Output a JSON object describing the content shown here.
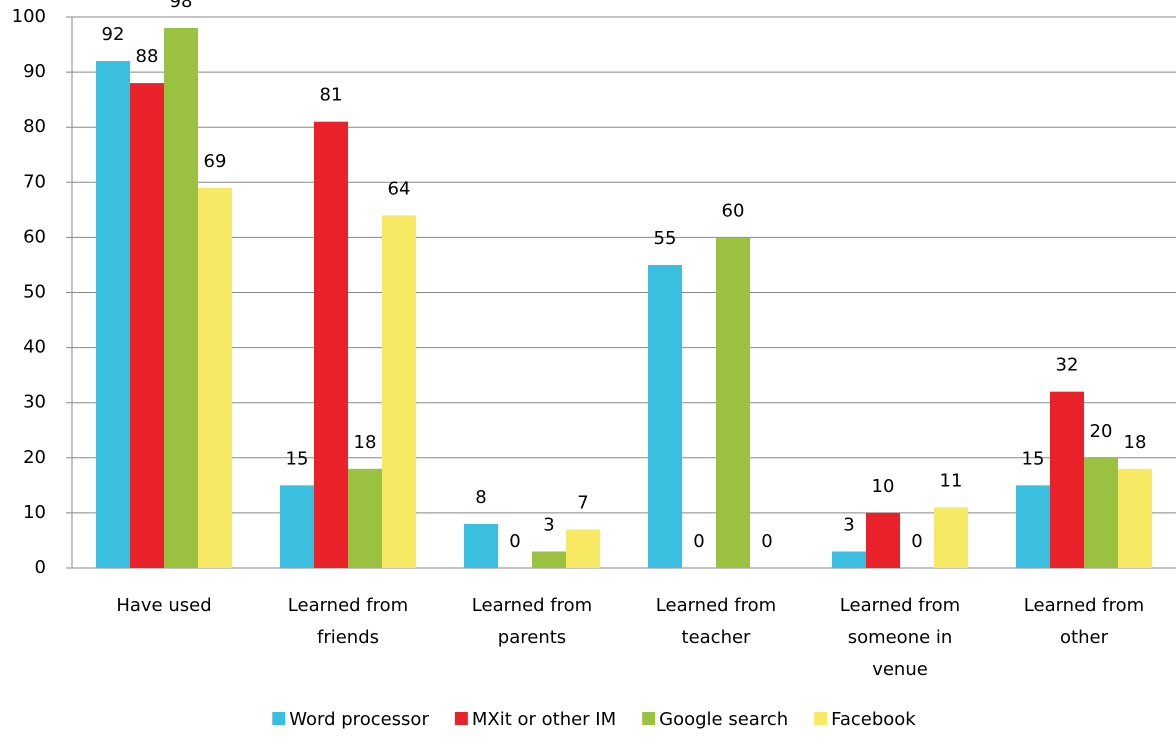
{
  "chart_data": {
    "type": "bar",
    "categories": [
      "Have used",
      "Learned from friends",
      "Learned from parents",
      "Learned from teacher",
      "Learned from someone in venue",
      "Learned from other"
    ],
    "series": [
      {
        "name": "Word processor",
        "color": "#3bbfe0",
        "values": [
          92,
          15,
          8,
          55,
          3,
          15
        ]
      },
      {
        "name": "MXit or other IM",
        "color": "#e8212b",
        "values": [
          88,
          81,
          0,
          0,
          10,
          32
        ]
      },
      {
        "name": "Google search",
        "color": "#9bc140",
        "values": [
          98,
          18,
          3,
          60,
          0,
          20
        ]
      },
      {
        "name": "Facebook",
        "color": "#f7e963",
        "values": [
          69,
          64,
          7,
          0,
          11,
          18
        ]
      }
    ],
    "ylim": [
      0,
      100
    ],
    "yticks": [
      0,
      10,
      20,
      30,
      40,
      50,
      60,
      70,
      80,
      90,
      100
    ],
    "grid": true,
    "legend": "bottom"
  }
}
